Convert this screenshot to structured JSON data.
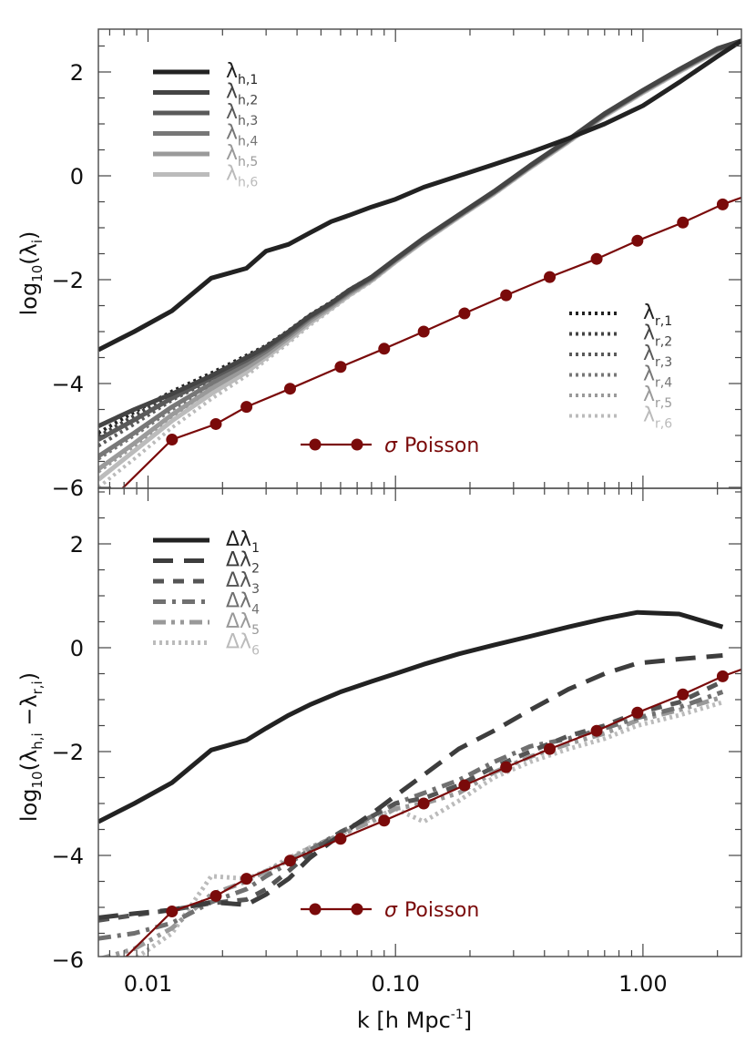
{
  "figure": {
    "xlabel": "k  [h Mpc",
    "xlabel_sup": "-1",
    "xlabel_close": "]",
    "x_tick_labels": [
      "0.01",
      "0.10",
      "1.00"
    ],
    "y_tick_labels": [
      "2",
      "0",
      "−2",
      "−4",
      "−6"
    ]
  },
  "chart_data": [
    {
      "type": "line",
      "panel": "top",
      "title": "",
      "xlabel": "k [h Mpc^-1]",
      "ylabel": "log10(λ_i)",
      "xscale": "log",
      "xlim": [
        0.0063,
        2.5
      ],
      "ylim": [
        -6.2,
        2.9
      ],
      "yticks": [
        2,
        0,
        -2,
        -4,
        -6
      ],
      "xticks": [
        0.01,
        0.1,
        1.0
      ],
      "x": [
        0.0063,
        0.0088,
        0.0125,
        0.018,
        0.025,
        0.03,
        0.037,
        0.045,
        0.055,
        0.065,
        0.08,
        0.1,
        0.13,
        0.18,
        0.25,
        0.35,
        0.5,
        0.7,
        1.0,
        1.4,
        2.0,
        2.5
      ],
      "series": [
        {
          "name": "λ_h,1",
          "color": "#222222",
          "style": "solid",
          "width": 5,
          "values": [
            -3.35,
            -3.0,
            -2.6,
            -1.97,
            -1.78,
            -1.45,
            -1.32,
            -1.1,
            -0.88,
            -0.76,
            -0.6,
            -0.45,
            -0.22,
            0.0,
            0.22,
            0.45,
            0.72,
            1.0,
            1.35,
            1.8,
            2.3,
            2.6
          ]
        },
        {
          "name": "λ_h,2",
          "color": "#444444",
          "style": "solid",
          "width": 5,
          "values": [
            -4.82,
            -4.5,
            -4.2,
            -3.85,
            -3.5,
            -3.3,
            -3.0,
            -2.7,
            -2.45,
            -2.2,
            -1.95,
            -1.6,
            -1.2,
            -0.75,
            -0.3,
            0.2,
            0.7,
            1.2,
            1.65,
            2.05,
            2.45,
            2.6
          ]
        },
        {
          "name": "λ_h,3",
          "color": "#5a5a5a",
          "style": "solid",
          "width": 5,
          "values": [
            -5.08,
            -4.7,
            -4.28,
            -3.9,
            -3.55,
            -3.33,
            -3.03,
            -2.72,
            -2.46,
            -2.22,
            -1.96,
            -1.61,
            -1.21,
            -0.76,
            -0.31,
            0.19,
            0.69,
            1.19,
            1.64,
            2.04,
            2.44,
            2.6
          ]
        },
        {
          "name": "λ_h,4",
          "color": "#777777",
          "style": "solid",
          "width": 5,
          "values": [
            -5.4,
            -4.95,
            -4.45,
            -4.0,
            -3.62,
            -3.38,
            -3.07,
            -2.75,
            -2.48,
            -2.24,
            -1.98,
            -1.62,
            -1.22,
            -0.77,
            -0.32,
            0.18,
            0.68,
            1.18,
            1.63,
            2.03,
            2.43,
            2.6
          ]
        },
        {
          "name": "λ_h,5",
          "color": "#9a9a9a",
          "style": "solid",
          "width": 5,
          "values": [
            -5.65,
            -5.15,
            -4.6,
            -4.1,
            -3.7,
            -3.45,
            -3.12,
            -2.8,
            -2.52,
            -2.27,
            -2.0,
            -1.64,
            -1.24,
            -0.78,
            -0.33,
            0.17,
            0.67,
            1.17,
            1.62,
            2.02,
            2.42,
            2.6
          ]
        },
        {
          "name": "λ_h,6",
          "color": "#bbbbbb",
          "style": "solid",
          "width": 5,
          "values": [
            -5.85,
            -5.3,
            -4.72,
            -4.2,
            -3.78,
            -3.5,
            -3.17,
            -2.84,
            -2.55,
            -2.3,
            -2.02,
            -1.66,
            -1.26,
            -0.8,
            -0.35,
            0.15,
            0.65,
            1.15,
            1.6,
            2.0,
            2.4,
            2.6
          ]
        },
        {
          "name": "λ_r,1",
          "color": "#222222",
          "style": "dotted",
          "width": 4,
          "values": [
            -4.95,
            -4.55,
            -4.15,
            -3.8,
            -3.46,
            -3.27,
            -2.98,
            -2.68,
            -2.43,
            -2.19,
            -1.94,
            -1.6,
            -1.2,
            -0.75,
            -0.3,
            0.2,
            0.7,
            1.2,
            1.65,
            2.05,
            2.45,
            2.6
          ]
        },
        {
          "name": "λ_r,2",
          "color": "#444444",
          "style": "dotted",
          "width": 4,
          "values": [
            -5.02,
            -4.62,
            -4.2,
            -3.84,
            -3.5,
            -3.3,
            -3.0,
            -2.7,
            -2.45,
            -2.21,
            -1.95,
            -1.61,
            -1.21,
            -0.76,
            -0.31,
            0.19,
            0.69,
            1.19,
            1.64,
            2.04,
            2.44,
            2.6
          ]
        },
        {
          "name": "λ_r,3",
          "color": "#5a5a5a",
          "style": "dotted",
          "width": 4,
          "values": [
            -5.2,
            -4.78,
            -4.32,
            -3.93,
            -3.57,
            -3.35,
            -3.05,
            -2.74,
            -2.47,
            -2.23,
            -1.97,
            -1.62,
            -1.22,
            -0.77,
            -0.32,
            0.18,
            0.68,
            1.18,
            1.63,
            2.03,
            2.43,
            2.6
          ]
        },
        {
          "name": "λ_r,4",
          "color": "#777777",
          "style": "dotted",
          "width": 4,
          "values": [
            -5.45,
            -5.0,
            -4.5,
            -4.05,
            -3.66,
            -3.41,
            -3.1,
            -2.78,
            -2.5,
            -2.25,
            -1.99,
            -1.63,
            -1.23,
            -0.78,
            -0.33,
            0.17,
            0.67,
            1.17,
            1.62,
            2.02,
            2.42,
            2.6
          ]
        },
        {
          "name": "λ_r,5",
          "color": "#9a9a9a",
          "style": "dotted",
          "width": 4,
          "values": [
            -5.7,
            -5.2,
            -4.66,
            -4.15,
            -3.74,
            -3.48,
            -3.15,
            -2.82,
            -2.54,
            -2.29,
            -2.01,
            -1.65,
            -1.25,
            -0.79,
            -0.34,
            0.16,
            0.66,
            1.16,
            1.61,
            2.01,
            2.41,
            2.6
          ]
        },
        {
          "name": "λ_r,6",
          "color": "#bbbbbb",
          "style": "dotted",
          "width": 4,
          "values": [
            -6.0,
            -5.45,
            -4.85,
            -4.3,
            -3.85,
            -3.55,
            -3.22,
            -2.88,
            -2.58,
            -2.32,
            -2.04,
            -1.67,
            -1.27,
            -0.81,
            -0.36,
            0.14,
            0.64,
            1.14,
            1.59,
            1.99,
            2.39,
            2.6
          ]
        }
      ],
      "poisson": {
        "name": "σ Poisson",
        "color": "#7a0a0a",
        "x": [
          0.0063,
          0.0075,
          0.0125,
          0.0188,
          0.025,
          0.0375,
          0.06,
          0.09,
          0.13,
          0.19,
          0.28,
          0.42,
          0.65,
          0.95,
          1.45,
          2.1,
          2.5
        ],
        "values": [
          -6.15,
          -6.12,
          -5.08,
          -4.78,
          -4.45,
          -4.1,
          -3.68,
          -3.33,
          -3.0,
          -2.65,
          -2.3,
          -1.95,
          -1.6,
          -1.25,
          -0.9,
          -0.55,
          -0.42
        ],
        "markers": [
          0.0125,
          0.0188,
          0.025,
          0.0375,
          0.06,
          0.09,
          0.13,
          0.19,
          0.28,
          0.42,
          0.65,
          0.95,
          1.45,
          2.1
        ]
      },
      "legend": {
        "upper_left": [
          "λ_h,1",
          "λ_h,2",
          "λ_h,3",
          "λ_h,4",
          "λ_h,5",
          "λ_h,6"
        ],
        "right": [
          "λ_r,1",
          "λ_r,2",
          "λ_r,3",
          "λ_r,4",
          "λ_r,5",
          "λ_r,6"
        ],
        "bottom": "σ Poisson"
      }
    },
    {
      "type": "line",
      "panel": "bottom",
      "title": "",
      "xlabel": "k [h Mpc^-1]",
      "ylabel": "log10(λ_h,i −λ_r,i)",
      "xscale": "log",
      "xlim": [
        0.0063,
        2.5
      ],
      "ylim": [
        -6.2,
        3.0
      ],
      "yticks": [
        2,
        0,
        -2,
        -4,
        -6
      ],
      "xticks": [
        0.01,
        0.1,
        1.0
      ],
      "x": [
        0.0063,
        0.0088,
        0.0125,
        0.018,
        0.025,
        0.03,
        0.037,
        0.045,
        0.06,
        0.08,
        0.1,
        0.13,
        0.18,
        0.25,
        0.35,
        0.5,
        0.7,
        0.95,
        1.4,
        2.1
      ],
      "series": [
        {
          "name": "Δλ_1",
          "color": "#222222",
          "style": "solid",
          "width": 5,
          "values": [
            -3.35,
            -3.0,
            -2.6,
            -1.97,
            -1.78,
            -1.55,
            -1.3,
            -1.1,
            -0.85,
            -0.65,
            -0.5,
            -0.32,
            -0.12,
            0.05,
            0.22,
            0.4,
            0.56,
            0.68,
            0.65,
            0.4
          ]
        },
        {
          "name": "Δλ_2",
          "color": "#3d3d3d",
          "style": "longdash",
          "width": 5,
          "values": [
            -5.2,
            -5.12,
            -5.05,
            -4.9,
            -4.95,
            -4.75,
            -4.45,
            -4.05,
            -3.6,
            -3.2,
            -2.85,
            -2.45,
            -1.95,
            -1.6,
            -1.2,
            -0.8,
            -0.5,
            -0.3,
            -0.22,
            -0.15
          ]
        },
        {
          "name": "Δλ_3",
          "color": "#555555",
          "style": "dash",
          "width": 5,
          "values": [
            -5.25,
            -5.15,
            -5.05,
            -4.92,
            -4.85,
            -4.65,
            -4.3,
            -3.95,
            -3.55,
            -3.25,
            -3.0,
            -2.9,
            -2.65,
            -2.3,
            -2.0,
            -1.7,
            -1.5,
            -1.25,
            -1.05,
            -0.65
          ]
        },
        {
          "name": "Δλ_4",
          "color": "#707070",
          "style": "dashdot",
          "width": 5,
          "values": [
            -5.6,
            -5.5,
            -5.3,
            -4.9,
            -4.65,
            -4.4,
            -4.15,
            -3.9,
            -3.55,
            -3.25,
            -3.0,
            -2.8,
            -2.55,
            -2.2,
            -1.9,
            -1.75,
            -1.55,
            -1.35,
            -1.15,
            -0.85
          ]
        },
        {
          "name": "Δλ_5",
          "color": "#999999",
          "style": "dashdotdot",
          "width": 5,
          "values": [
            -6.0,
            -5.8,
            -5.4,
            -4.75,
            -4.5,
            -4.3,
            -4.1,
            -3.85,
            -3.6,
            -3.35,
            -3.1,
            -3.0,
            -2.8,
            -2.4,
            -2.1,
            -1.85,
            -1.65,
            -1.4,
            -1.2,
            -0.95
          ]
        },
        {
          "name": "Δλ_6",
          "color": "#bbbbbb",
          "style": "dotted",
          "width": 5,
          "values": [
            -6.4,
            -6.0,
            -5.5,
            -4.4,
            -4.45,
            -4.3,
            -4.05,
            -3.85,
            -3.6,
            -3.3,
            -3.1,
            -3.35,
            -2.95,
            -2.5,
            -2.2,
            -1.95,
            -1.75,
            -1.5,
            -1.3,
            -1.05
          ]
        }
      ],
      "poisson": {
        "name": "σ Poisson",
        "color": "#7a0a0a",
        "x": [
          0.0063,
          0.0075,
          0.0125,
          0.0188,
          0.025,
          0.0375,
          0.06,
          0.09,
          0.13,
          0.19,
          0.28,
          0.42,
          0.65,
          0.95,
          1.45,
          2.1,
          2.5
        ],
        "values": [
          -6.15,
          -6.12,
          -5.08,
          -4.78,
          -4.45,
          -4.1,
          -3.68,
          -3.33,
          -3.0,
          -2.65,
          -2.3,
          -1.95,
          -1.6,
          -1.25,
          -0.9,
          -0.55,
          -0.42
        ],
        "markers": [
          0.0125,
          0.0188,
          0.025,
          0.0375,
          0.06,
          0.09,
          0.13,
          0.19,
          0.28,
          0.42,
          0.65,
          0.95,
          1.45,
          2.1
        ]
      },
      "legend": {
        "upper_left": [
          "Δλ_1",
          "Δλ_2",
          "Δλ_3",
          "Δλ_4",
          "Δλ_5",
          "Δλ_6"
        ],
        "bottom": "σ Poisson"
      }
    }
  ],
  "legends": {
    "top_h": [
      {
        "main": "λ",
        "sub": "h,1",
        "color": "#222222"
      },
      {
        "main": "λ",
        "sub": "h,2",
        "color": "#444444"
      },
      {
        "main": "λ",
        "sub": "h,3",
        "color": "#5a5a5a"
      },
      {
        "main": "λ",
        "sub": "h,4",
        "color": "#777777"
      },
      {
        "main": "λ",
        "sub": "h,5",
        "color": "#9a9a9a"
      },
      {
        "main": "λ",
        "sub": "h,6",
        "color": "#bbbbbb"
      }
    ],
    "top_r": [
      {
        "main": "λ",
        "sub": "r,1",
        "color": "#222222"
      },
      {
        "main": "λ",
        "sub": "r,2",
        "color": "#444444"
      },
      {
        "main": "λ",
        "sub": "r,3",
        "color": "#5a5a5a"
      },
      {
        "main": "λ",
        "sub": "r,4",
        "color": "#777777"
      },
      {
        "main": "λ",
        "sub": "r,5",
        "color": "#9a9a9a"
      },
      {
        "main": "λ",
        "sub": "r,6",
        "color": "#bbbbbb"
      }
    ],
    "bottom_d": [
      {
        "main": "Δλ",
        "sub": "1",
        "color": "#222222"
      },
      {
        "main": "Δλ",
        "sub": "2",
        "color": "#3d3d3d"
      },
      {
        "main": "Δλ",
        "sub": "3",
        "color": "#555555"
      },
      {
        "main": "Δλ",
        "sub": "4",
        "color": "#707070"
      },
      {
        "main": "Δλ",
        "sub": "5",
        "color": "#999999"
      },
      {
        "main": "Δλ",
        "sub": "6",
        "color": "#bbbbbb"
      }
    ],
    "poisson_label": "σ Poisson",
    "poisson_sigma": "σ",
    "poisson_text": "Poisson"
  },
  "ylabels": {
    "top": {
      "prefix": "log",
      "sub": "10",
      "open": "(λ",
      "isub": "i",
      "close": ")"
    },
    "bottom": {
      "prefix": "log",
      "sub": "10",
      "open": "(λ",
      "isub1": "h,i",
      "mid": " −λ",
      "isub2": "r,i",
      "close": ")"
    }
  }
}
